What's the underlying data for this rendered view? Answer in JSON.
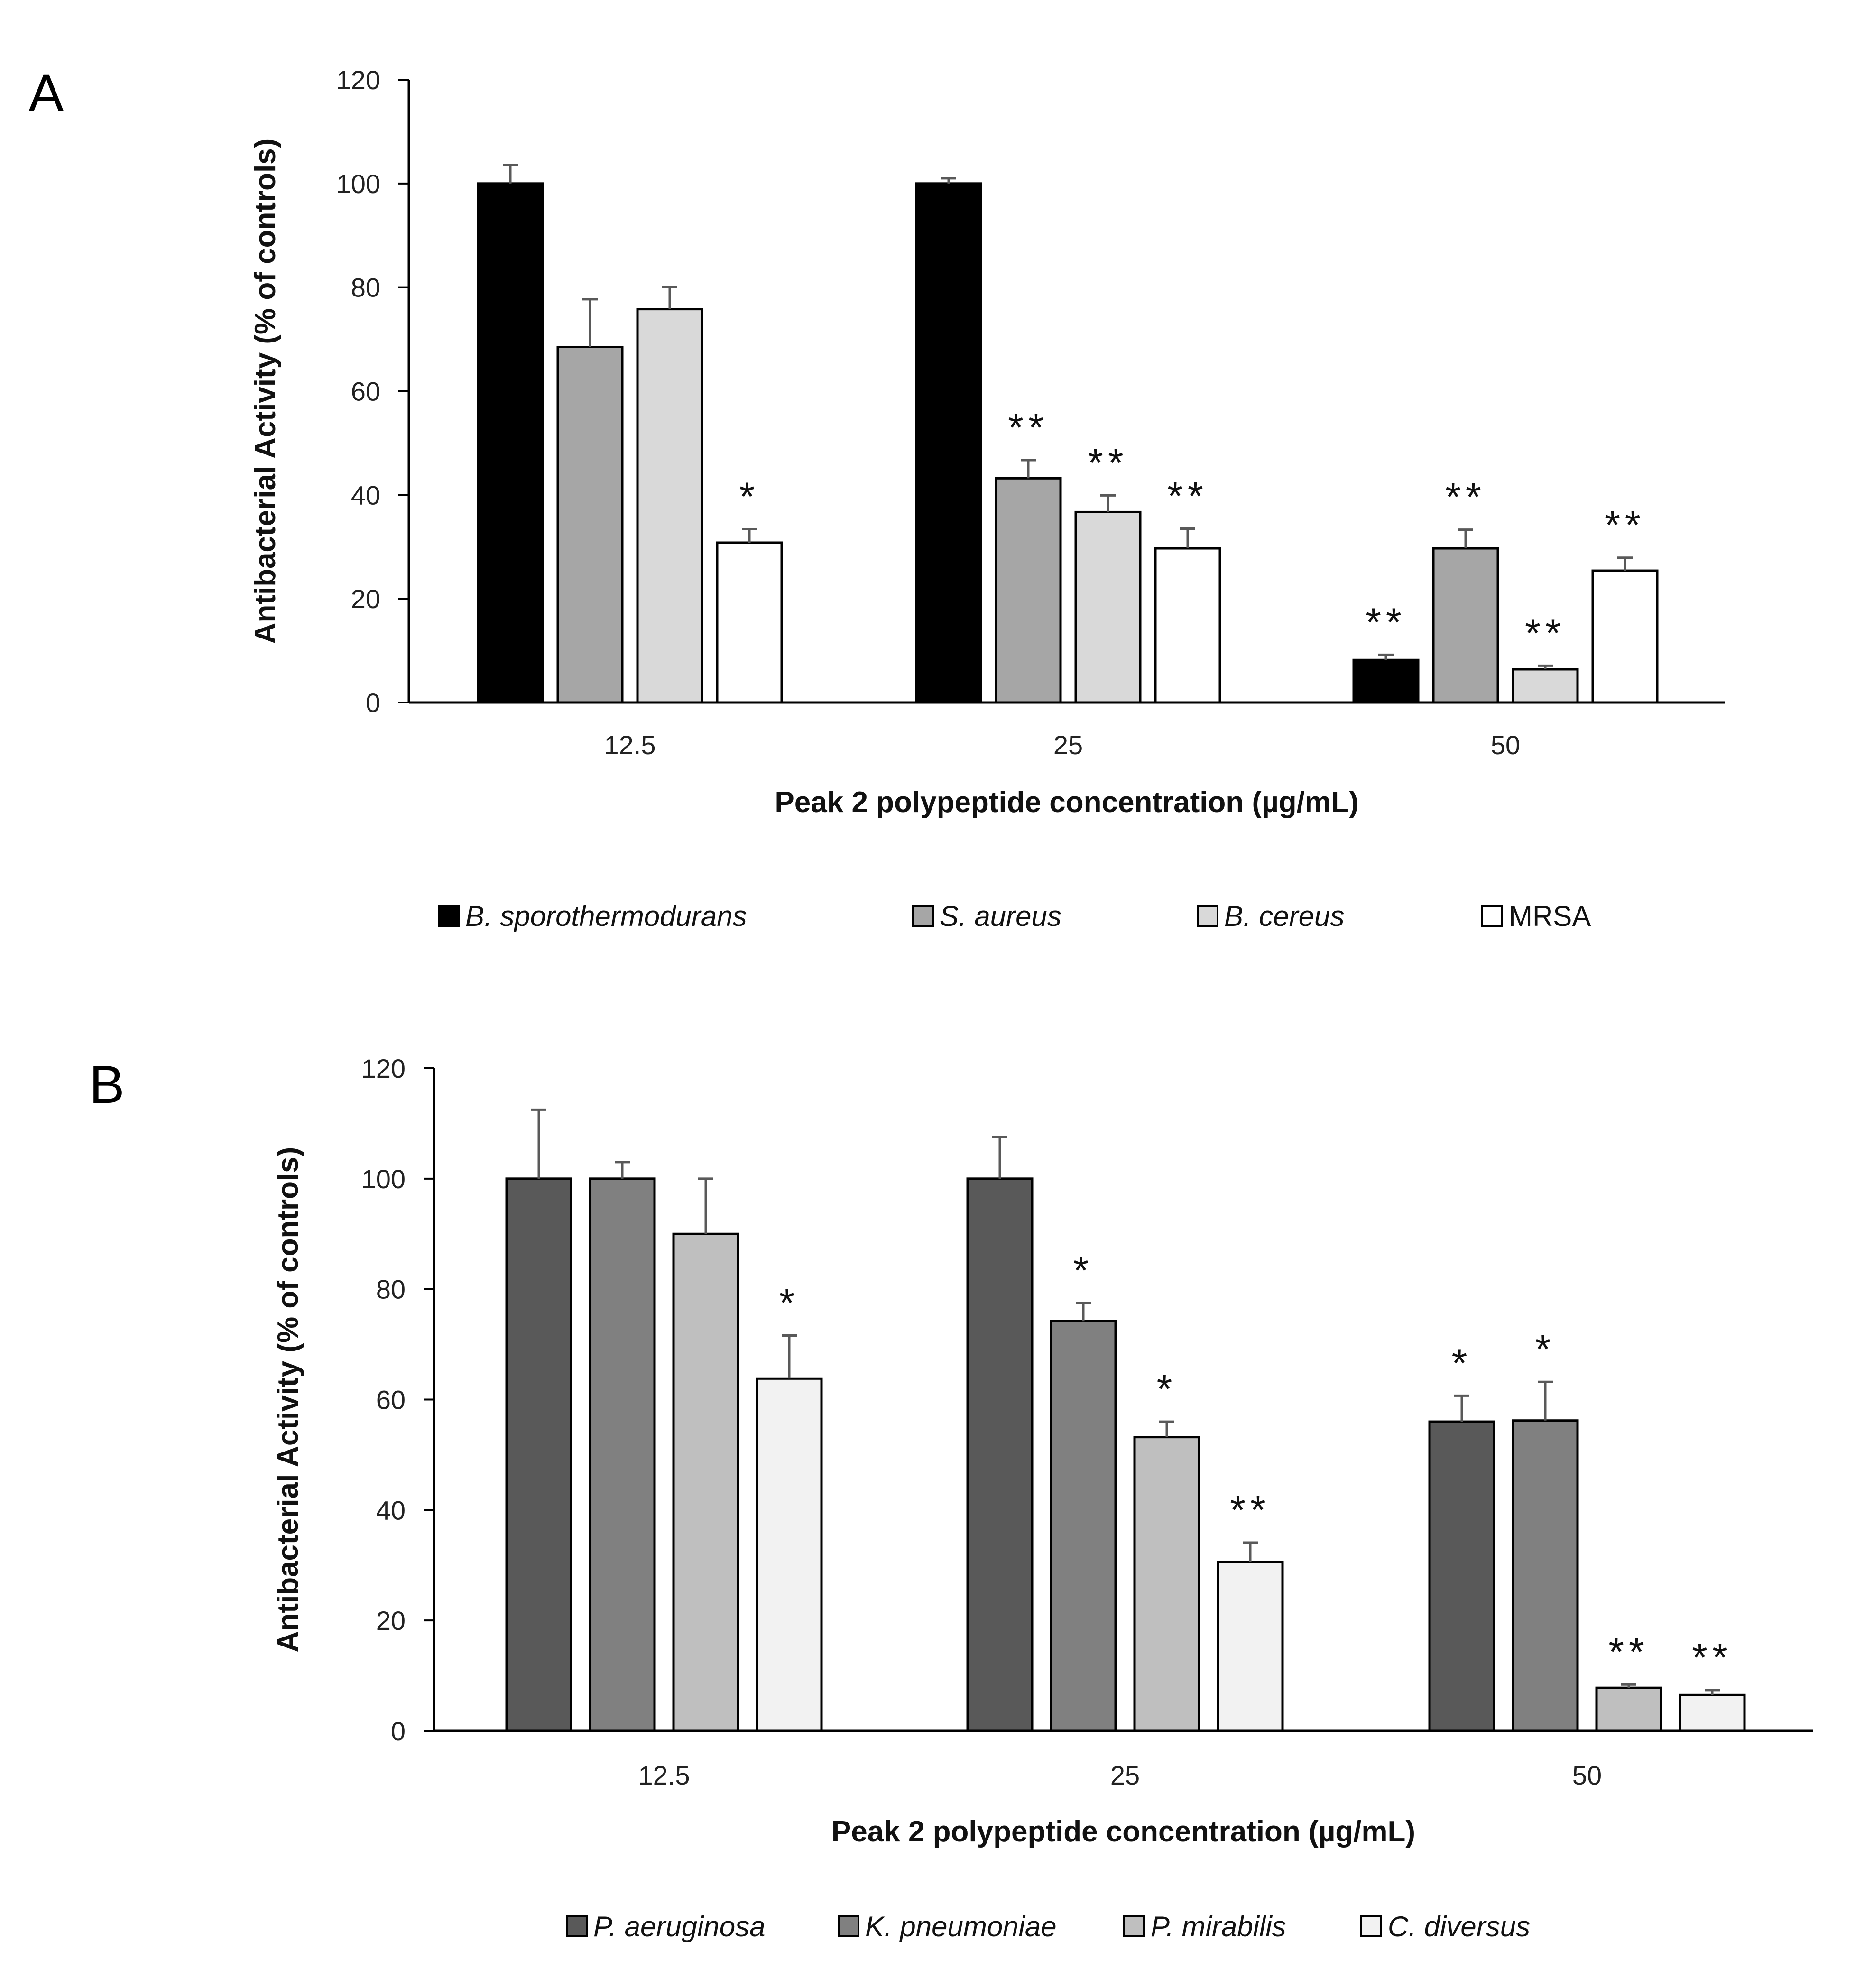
{
  "chart_data": [
    {
      "panel": "A",
      "type": "bar",
      "xlabel": "Peak 2 polypeptide concentration (µg/mL)",
      "ylabel": "Antibacterial Activity (% of controls)",
      "ylim": [
        0,
        120
      ],
      "yticks": [
        0,
        20,
        40,
        60,
        80,
        100,
        120
      ],
      "categories": [
        "12.5",
        "25",
        "50"
      ],
      "series": [
        {
          "name": "B. sporothermodurans",
          "italic": true,
          "color": "#000000",
          "values": [
            100,
            100,
            8.2
          ],
          "errors": [
            3.5,
            1.0,
            1.0
          ],
          "annotations": [
            "",
            "",
            "**"
          ]
        },
        {
          "name": "S. aureus",
          "italic": true,
          "color": "#a6a6a6",
          "values": [
            68.5,
            43.2,
            29.7
          ],
          "errors": [
            9.2,
            3.5,
            3.6
          ],
          "annotations": [
            "",
            "**",
            "**"
          ]
        },
        {
          "name": "B. cereus",
          "italic": true,
          "color": "#d9d9d9",
          "values": [
            75.8,
            36.7,
            6.4
          ],
          "errors": [
            4.3,
            3.2,
            0.7
          ],
          "annotations": [
            "",
            "**",
            "**"
          ]
        },
        {
          "name": "MRSA",
          "italic": false,
          "color": "#ffffff",
          "values": [
            30.8,
            29.7,
            25.4
          ],
          "errors": [
            2.6,
            3.8,
            2.5
          ],
          "annotations": [
            "*",
            "**",
            "**"
          ]
        }
      ]
    },
    {
      "panel": "B",
      "type": "bar",
      "xlabel": "Peak 2 polypeptide concentration (µg/mL)",
      "ylabel": "Antibacterial Activity (% of controls)",
      "ylim": [
        0,
        120
      ],
      "yticks": [
        0,
        20,
        40,
        60,
        80,
        100,
        120
      ],
      "categories": [
        "12.5",
        "25",
        "50"
      ],
      "series": [
        {
          "name": "P. aeruginosa",
          "italic": true,
          "color": "#595959",
          "values": [
            100,
            100,
            56
          ],
          "errors": [
            12.5,
            7.5,
            4.7
          ],
          "annotations": [
            "",
            "",
            "*"
          ]
        },
        {
          "name": "K. pneumoniae",
          "italic": true,
          "color": "#808080",
          "values": [
            100,
            74.2,
            56.2
          ],
          "errors": [
            3.0,
            3.3,
            7.0
          ],
          "annotations": [
            "",
            "*",
            "*"
          ]
        },
        {
          "name": "P. mirabilis",
          "italic": true,
          "color": "#bfbfbf",
          "values": [
            90,
            53.2,
            7.8
          ],
          "errors": [
            10.0,
            2.8,
            0.6
          ],
          "annotations": [
            "",
            "*",
            "**"
          ]
        },
        {
          "name": "C. diversus",
          "italic": true,
          "color": "#f2f2f2",
          "values": [
            63.8,
            30.6,
            6.5
          ],
          "errors": [
            7.8,
            3.5,
            0.9
          ],
          "annotations": [
            "*",
            "**",
            "**"
          ]
        }
      ]
    }
  ]
}
